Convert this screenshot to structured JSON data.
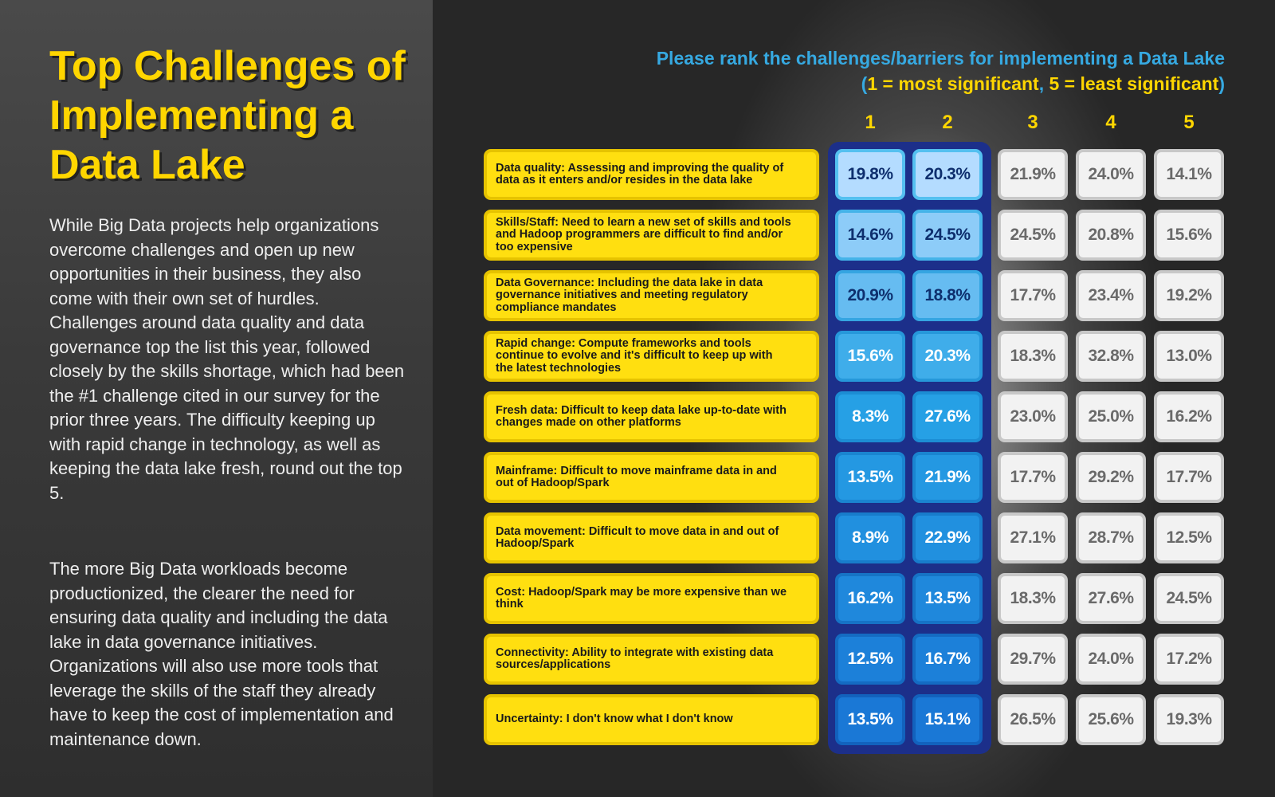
{
  "left_panel": {
    "title": "Top Challenges of Implementing a Data Lake",
    "paragraph1": "While Big Data projects help organizations overcome challenges and open up new opportunities in their business, they also come with their own set of hurdles. Challenges around data quality and data governance top the list this year, followed closely by the skills shortage, which had been the #1 challenge cited in our survey for the prior three years. The difficulty keeping up with rapid change in technology, as well as keeping the data lake fresh, round out the top 5.",
    "paragraph2": "The more Big Data workloads become productionized, the clearer the need for ensuring data quality and including the data lake in data governance initiatives. Organizations will also use more tools that leverage the skills of the staff they already have to keep the cost of implementation and maintenance down."
  },
  "colors": {
    "accent_yellow": "#ffd600",
    "accent_blue": "#36a9e1",
    "rank1_2_panel": "#1c2f8a",
    "cell_grey": "#f2f2f2"
  },
  "chart_data": {
    "type": "table",
    "title_line1": "Please rank the challenges/barriers for implementing a Data Lake",
    "title_line2": {
      "open": "(",
      "one": "1 = most significant",
      "sep": ", ",
      "five": "5 = least significant",
      "close": ")"
    },
    "columns": [
      "1",
      "2",
      "3",
      "4",
      "5"
    ],
    "value_suffix": "%",
    "rows": [
      {
        "label": "Data quality: Assessing and improving the quality of data as it enters and/or resides in the data lake",
        "values": [
          19.8,
          20.3,
          21.9,
          24.0,
          14.1
        ]
      },
      {
        "label": "Skills/Staff: Need to learn a new set of skills and tools and Hadoop programmers are difficult to find and/or too expensive",
        "values": [
          14.6,
          24.5,
          24.5,
          20.8,
          15.6
        ]
      },
      {
        "label": "Data Governance: Including the data lake in data governance initiatives and meeting regulatory compliance mandates",
        "values": [
          20.9,
          18.8,
          17.7,
          23.4,
          19.2
        ]
      },
      {
        "label": "Rapid change: Compute frameworks and tools continue to evolve and it's difficult to keep up with the latest technologies",
        "values": [
          15.6,
          20.3,
          18.3,
          32.8,
          13.0
        ]
      },
      {
        "label": "Fresh data: Difficult to keep data lake up-to-date with changes made on other platforms",
        "values": [
          8.3,
          27.6,
          23.0,
          25.0,
          16.2
        ]
      },
      {
        "label": "Mainframe: Difficult to move mainframe data in and out of Hadoop/Spark",
        "values": [
          13.5,
          21.9,
          17.7,
          29.2,
          17.7
        ]
      },
      {
        "label": "Data movement: Difficult to move data in and out of Hadoop/Spark",
        "values": [
          8.9,
          22.9,
          27.1,
          28.7,
          12.5
        ]
      },
      {
        "label": "Cost: Hadoop/Spark may be more expensive than we think",
        "values": [
          16.2,
          13.5,
          18.3,
          27.6,
          24.5
        ]
      },
      {
        "label": "Connectivity: Ability to integrate with existing data sources/applications",
        "values": [
          12.5,
          16.7,
          29.7,
          24.0,
          17.2
        ]
      },
      {
        "label": "Uncertainty: I don't know what I don't know",
        "values": [
          13.5,
          15.1,
          26.5,
          25.6,
          19.3
        ]
      }
    ]
  }
}
